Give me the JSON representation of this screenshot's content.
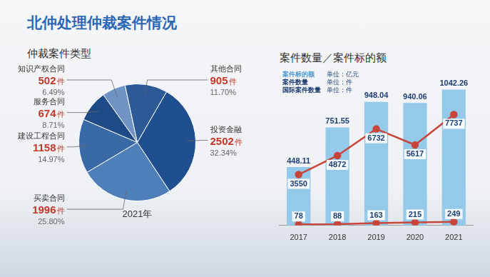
{
  "title": "北仲处理仲裁案件情况",
  "chart_data": [
    {
      "type": "pie",
      "title": "仲裁案件类型",
      "subtitle": "2021年",
      "categories": [
        "投资金融",
        "买卖合同",
        "建设工程合同",
        "服务合同",
        "知识产权合同",
        "其他合同"
      ],
      "values": [
        2502,
        1996,
        1158,
        674,
        502,
        905
      ],
      "value_labels": [
        "2502件",
        "1996件",
        "1158件",
        "674件",
        "502件",
        "905件"
      ],
      "percent_labels": [
        "32.34%",
        "25.80%",
        "14.97%",
        "8.71%",
        "6.49%",
        "11.70%"
      ],
      "colors": [
        "#1f4f8f",
        "#4f7fb8",
        "#3a6aa6",
        "#1e4a86",
        "#6e93c4",
        "#2d5a97"
      ],
      "data_labels": true
    },
    {
      "type": "bar",
      "title": "案件数量／案件标的额",
      "categories": [
        "2017",
        "2018",
        "2019",
        "2020",
        "2021"
      ],
      "series": [
        {
          "name": "案件标的额",
          "unit": "单位：亿元",
          "type": "bar",
          "color": "#95c9ea",
          "values": [
            448.11,
            751.55,
            948.04,
            940.06,
            1042.26
          ]
        },
        {
          "name": "案件数量",
          "unit": "单位：件",
          "type": "line",
          "color": "#c8453b",
          "marker": "circle",
          "line_style": "solid",
          "axis": "y2",
          "values": [
            3550,
            4872,
            6732,
            5617,
            7737
          ]
        },
        {
          "name": "国际案件数量",
          "unit": "单位：件",
          "type": "line",
          "color": "#c8453b",
          "marker": "circle",
          "line_style": "solid",
          "axis": "y2",
          "values": [
            78,
            88,
            163,
            215,
            249
          ]
        }
      ],
      "ylim": [
        0,
        1100
      ],
      "yticks": [
        0,
        1100
      ],
      "y2lim": [
        0,
        10000
      ],
      "y2ticks": [
        0,
        10000
      ],
      "grid": false,
      "data_labels": true,
      "tick_labels": "x",
      "legend": "upper left"
    }
  ]
}
